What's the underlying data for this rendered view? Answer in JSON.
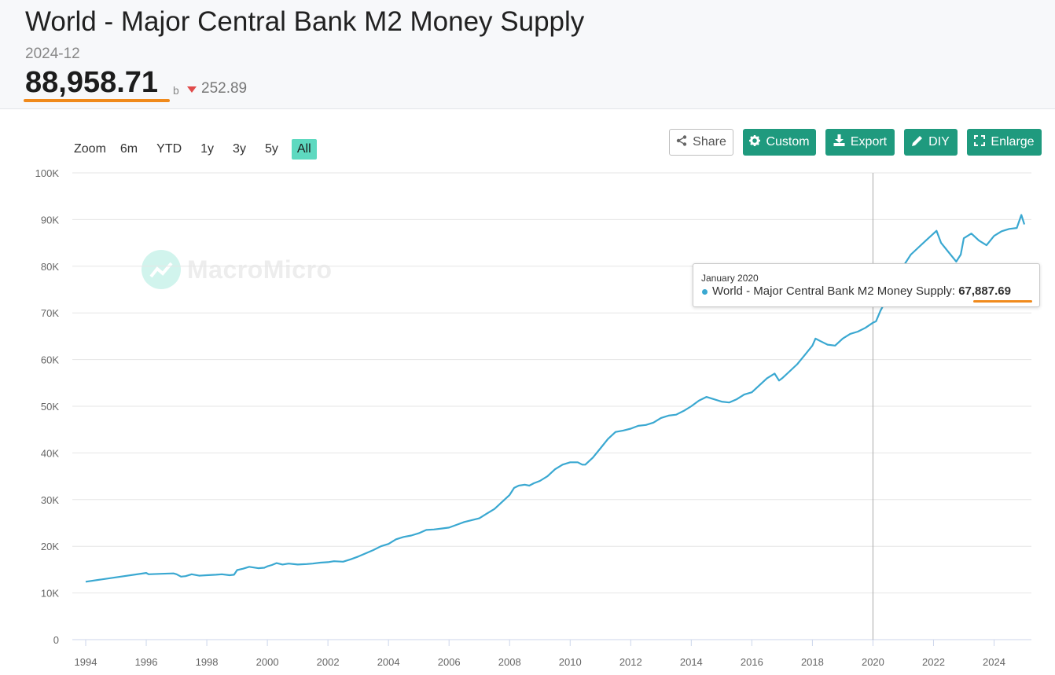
{
  "header": {
    "title": "World - Major Central Bank M2 Money Supply",
    "date": "2024-12",
    "value": "88,958.71",
    "unit": "b",
    "change": "252.89",
    "change_direction": "down",
    "change_color": "#e14b4b",
    "highlight_color": "#f08a1c"
  },
  "toolbar": {
    "zoom_label": "Zoom",
    "zoom_options": [
      "6m",
      "YTD",
      "1y",
      "3y",
      "5y",
      "All"
    ],
    "active_zoom": "All",
    "share_label": "Share",
    "custom_label": "Custom",
    "export_label": "Export",
    "diy_label": "DIY",
    "enlarge_label": "Enlarge",
    "button_color": "#1f9a7e",
    "active_zoom_color": "#5ed9c0",
    "icons": {
      "share": "share-icon",
      "custom": "gear-icon",
      "export": "download-icon",
      "diy": "pencil-icon",
      "enlarge": "expand-icon"
    }
  },
  "watermark": {
    "text": "MacroMicro"
  },
  "tooltip": {
    "date": "January 2020",
    "series": "World - Major Central Bank M2 Money Supply:",
    "value": "67,887.69"
  },
  "chart_data": {
    "type": "line",
    "title": "",
    "xlabel": "",
    "ylabel": "",
    "xlim": [
      1993.9,
      2025.3
    ],
    "ylim": [
      0,
      100000
    ],
    "x_ticks": [
      "1994",
      "1996",
      "1998",
      "2000",
      "2002",
      "2004",
      "2006",
      "2008",
      "2010",
      "2012",
      "2014",
      "2016",
      "2018",
      "2020",
      "2022",
      "2024"
    ],
    "y_ticks": [
      "0",
      "10K",
      "20K",
      "30K",
      "40K",
      "50K",
      "60K",
      "70K",
      "80K",
      "90K",
      "100K"
    ],
    "grid": "horizontal",
    "line_color": "#3aa8d1",
    "crosshair_x": 2020.0,
    "series": [
      {
        "name": "World - Major Central Bank M2 Money Supply",
        "x": [
          1994.0,
          1996.0,
          1996.08,
          1996.5,
          1996.9,
          1997.0,
          1997.15,
          1997.3,
          1997.5,
          1997.75,
          1998.0,
          1998.3,
          1998.5,
          1998.75,
          1998.9,
          1999.0,
          1999.2,
          1999.4,
          1999.7,
          1999.9,
          2000.0,
          2000.15,
          2000.3,
          2000.5,
          2000.7,
          2001.0,
          2001.3,
          2001.5,
          2001.75,
          2002.0,
          2002.2,
          2002.5,
          2002.75,
          2003.0,
          2003.25,
          2003.5,
          2003.75,
          2004.0,
          2004.25,
          2004.5,
          2004.75,
          2005.0,
          2005.25,
          2005.5,
          2005.75,
          2006.0,
          2006.25,
          2006.5,
          2006.75,
          2007.0,
          2007.25,
          2007.5,
          2007.75,
          2008.0,
          2008.15,
          2008.3,
          2008.5,
          2008.65,
          2008.8,
          2009.0,
          2009.25,
          2009.5,
          2009.75,
          2010.0,
          2010.25,
          2010.4,
          2010.5,
          2010.75,
          2011.0,
          2011.25,
          2011.5,
          2011.75,
          2012.0,
          2012.25,
          2012.5,
          2012.75,
          2013.0,
          2013.25,
          2013.5,
          2013.75,
          2014.0,
          2014.25,
          2014.5,
          2014.75,
          2015.0,
          2015.25,
          2015.5,
          2015.75,
          2016.0,
          2016.25,
          2016.5,
          2016.75,
          2016.9,
          2017.0,
          2017.25,
          2017.5,
          2017.75,
          2018.0,
          2018.1,
          2018.25,
          2018.5,
          2018.75,
          2019.0,
          2019.25,
          2019.5,
          2019.75,
          2020.0,
          2020.1,
          2020.25,
          2020.5,
          2020.75,
          2021.0,
          2021.25,
          2021.5,
          2021.75,
          2022.0,
          2022.1,
          2022.25,
          2022.5,
          2022.75,
          2022.9,
          2023.0,
          2023.25,
          2023.5,
          2023.75,
          2024.0,
          2024.25,
          2024.5,
          2024.75,
          2024.9,
          2025.0
        ],
        "values": [
          12400,
          14300,
          14000,
          14100,
          14200,
          14000,
          13500,
          13600,
          14000,
          13700,
          13800,
          13900,
          14000,
          13800,
          13900,
          14900,
          15200,
          15600,
          15300,
          15400,
          15700,
          16000,
          16400,
          16100,
          16300,
          16100,
          16200,
          16300,
          16500,
          16600,
          16800,
          16700,
          17200,
          17800,
          18500,
          19200,
          20000,
          20500,
          21500,
          22000,
          22300,
          22800,
          23500,
          23600,
          23800,
          24000,
          24600,
          25200,
          25600,
          26000,
          27000,
          28000,
          29500,
          31000,
          32500,
          33000,
          33200,
          33000,
          33500,
          34000,
          35000,
          36500,
          37500,
          38000,
          38000,
          37500,
          37500,
          39000,
          41000,
          43000,
          44500,
          44800,
          45200,
          45800,
          46000,
          46500,
          47500,
          48000,
          48200,
          49000,
          50000,
          51200,
          52000,
          51500,
          51000,
          50800,
          51500,
          52500,
          53000,
          54500,
          56000,
          57000,
          55500,
          56000,
          57500,
          59000,
          61000,
          63000,
          64500,
          64000,
          63200,
          63000,
          64500,
          65500,
          66000,
          66800,
          67888,
          68200,
          70500,
          73500,
          77000,
          80000,
          82500,
          84000,
          85500,
          87000,
          87600,
          85000,
          83000,
          81000,
          82500,
          86000,
          87000,
          85500,
          84500,
          86500,
          87500,
          88000,
          88200,
          91000,
          88959
        ]
      }
    ]
  }
}
